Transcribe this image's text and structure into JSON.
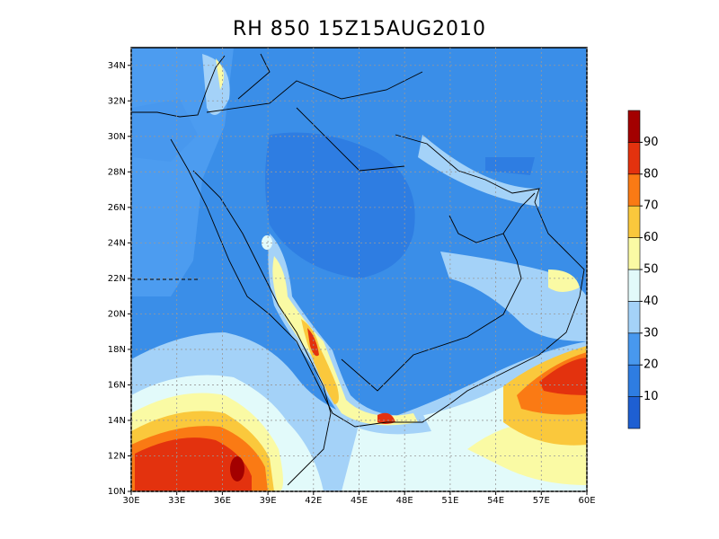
{
  "chart_data": {
    "type": "filled-contour-map",
    "title": "RH 850 15Z15AUG2010",
    "xlim": [
      30,
      60
    ],
    "ylim": [
      10,
      35
    ],
    "xticks": [
      {
        "value": 30,
        "label": "30E"
      },
      {
        "value": 33,
        "label": "33E"
      },
      {
        "value": 36,
        "label": "36E"
      },
      {
        "value": 39,
        "label": "39E"
      },
      {
        "value": 42,
        "label": "42E"
      },
      {
        "value": 45,
        "label": "45E"
      },
      {
        "value": 48,
        "label": "48E"
      },
      {
        "value": 51,
        "label": "51E"
      },
      {
        "value": 54,
        "label": "54E"
      },
      {
        "value": 57,
        "label": "57E"
      },
      {
        "value": 60,
        "label": "60E"
      }
    ],
    "yticks": [
      {
        "value": 10,
        "label": "10N"
      },
      {
        "value": 12,
        "label": "12N"
      },
      {
        "value": 14,
        "label": "14N"
      },
      {
        "value": 16,
        "label": "16N"
      },
      {
        "value": 18,
        "label": "18N"
      },
      {
        "value": 20,
        "label": "20N"
      },
      {
        "value": 22,
        "label": "22N"
      },
      {
        "value": 24,
        "label": "24N"
      },
      {
        "value": 26,
        "label": "26N"
      },
      {
        "value": 28,
        "label": "28N"
      },
      {
        "value": 30,
        "label": "30N"
      },
      {
        "value": 32,
        "label": "32N"
      },
      {
        "value": 34,
        "label": "34N"
      }
    ],
    "grid": true,
    "colorbar": {
      "lim": [
        0,
        100
      ],
      "ticks": [
        10,
        20,
        30,
        40,
        50,
        60,
        70,
        80,
        90
      ],
      "colors": [
        "#1e5fd2",
        "#2e7de2",
        "#4898ee",
        "#a4d2f8",
        "#e2fafa",
        "#fafaa4",
        "#fac83c",
        "#fa7a14",
        "#e3320e",
        "#a30000"
      ]
    }
  }
}
